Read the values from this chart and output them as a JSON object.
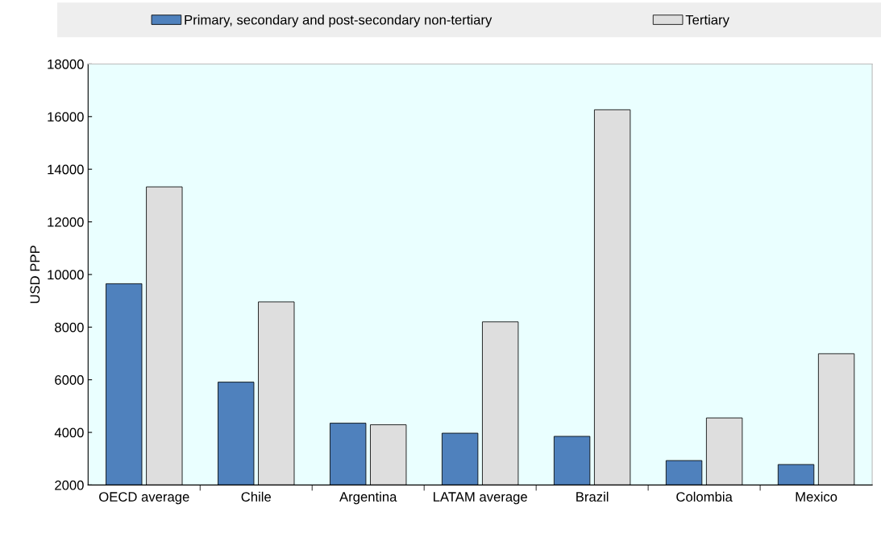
{
  "chart_data": {
    "type": "bar",
    "ylabel": "USD PPP",
    "categories": [
      "OECD average",
      "Chile",
      "Argentina",
      "LATAM average",
      "Brazil",
      "Colombia",
      "Mexico"
    ],
    "series": [
      {
        "name": "Primary, secondary and post-secondary non-tertiary",
        "color": "#4f81bd",
        "values": [
          9650,
          5910,
          4350,
          3970,
          3850,
          2930,
          2780
        ]
      },
      {
        "name": "Tertiary",
        "color": "#dedede",
        "values": [
          13330,
          8960,
          4290,
          8200,
          16260,
          4550,
          6990
        ]
      }
    ],
    "ylim": [
      2000,
      18000
    ],
    "yticks": [
      2000,
      4000,
      6000,
      8000,
      10000,
      12000,
      14000,
      16000,
      18000
    ],
    "grid": false,
    "legend": "top"
  }
}
